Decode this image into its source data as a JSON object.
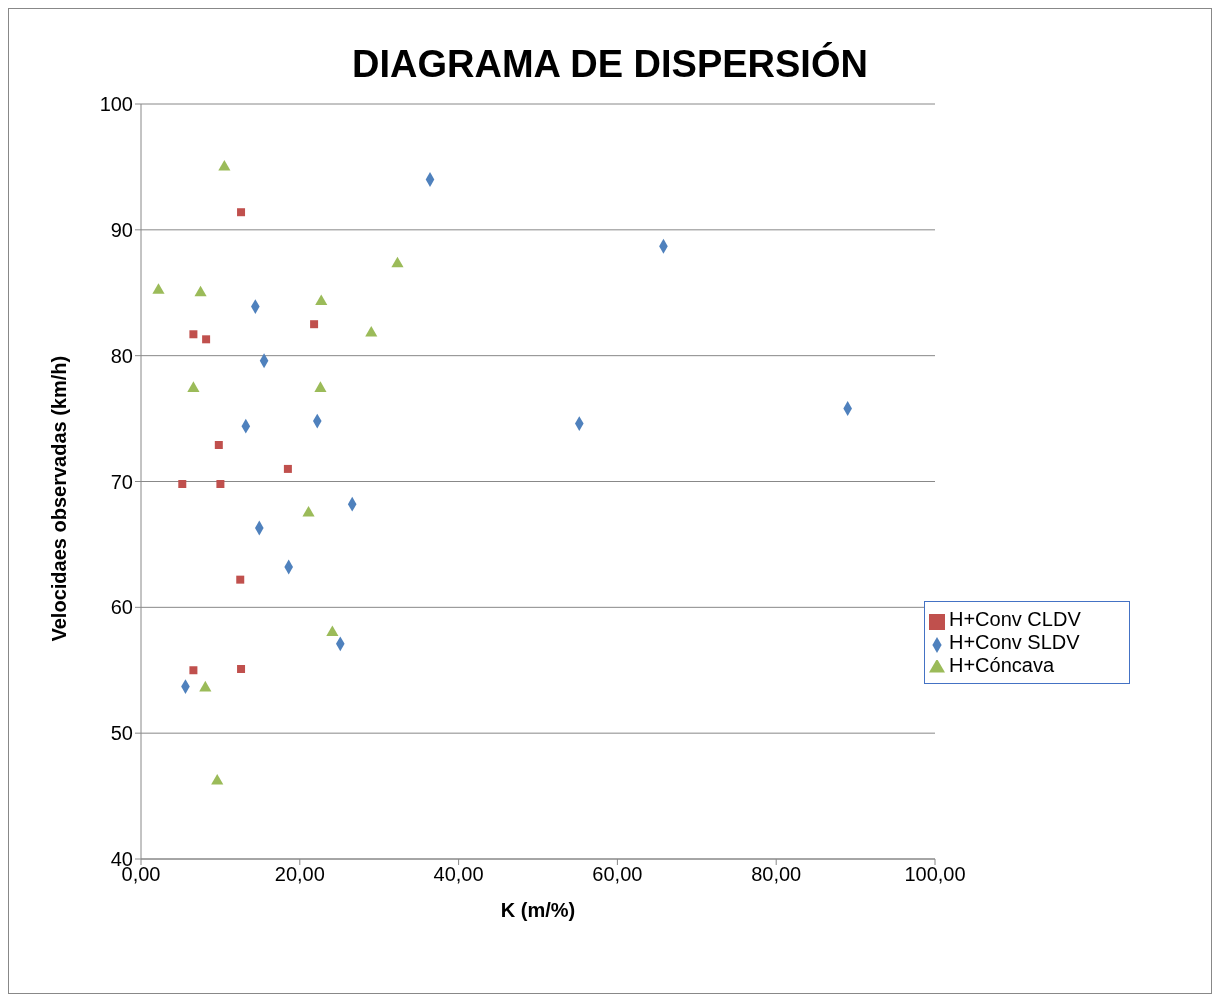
{
  "chart_data": {
    "type": "scatter",
    "title": "DIAGRAMA DE DISPERSIÓN",
    "xlabel": "K (m/%)",
    "ylabel": "Velocidaes observadas (km/h)",
    "xlim": [
      0,
      100
    ],
    "xticks": [
      {
        "value": 0,
        "label": "0,00"
      },
      {
        "value": 20,
        "label": "20,00"
      },
      {
        "value": 40,
        "label": "40,00"
      },
      {
        "value": 60,
        "label": "60,00"
      },
      {
        "value": 80,
        "label": "80,00"
      },
      {
        "value": 100,
        "label": "100,00"
      }
    ],
    "ylim": [
      40,
      100
    ],
    "yticks": [
      40,
      50,
      60,
      70,
      80,
      90,
      100
    ],
    "grid": "y",
    "legend": "right",
    "series": [
      {
        "name": "H+Conv SLDV",
        "color": "#4f81bd",
        "marker": "diamond",
        "x": [
          5.6,
          14.9,
          13.2,
          14.4,
          15.5,
          18.6,
          22.2,
          25.1,
          26.6,
          36.4,
          55.2,
          65.8,
          89.0
        ],
        "values": [
          53.7,
          66.3,
          74.4,
          83.9,
          79.6,
          63.2,
          74.8,
          57.1,
          68.2,
          94.0,
          74.6,
          88.7,
          75.8
        ]
      },
      {
        "name": "H+Conv CLDV",
        "color": "#c0504d",
        "marker": "square",
        "x": [
          5.2,
          6.6,
          6.6,
          8.2,
          9.8,
          10.0,
          12.5,
          12.6,
          12.6,
          18.5,
          21.8
        ],
        "values": [
          69.8,
          55.0,
          81.7,
          81.3,
          72.9,
          69.8,
          62.2,
          55.1,
          91.4,
          71.0,
          82.5
        ]
      },
      {
        "name": "H+Cóncava",
        "color": "#9bbb59",
        "marker": "triangle",
        "x": [
          2.2,
          6.6,
          7.5,
          8.1,
          9.6,
          10.5,
          21.1,
          22.6,
          22.7,
          24.1,
          29.0,
          32.3
        ],
        "values": [
          85.2,
          77.4,
          85.0,
          53.6,
          46.2,
          95.0,
          67.5,
          77.4,
          84.3,
          58.0,
          81.8,
          87.3
        ]
      }
    ]
  }
}
